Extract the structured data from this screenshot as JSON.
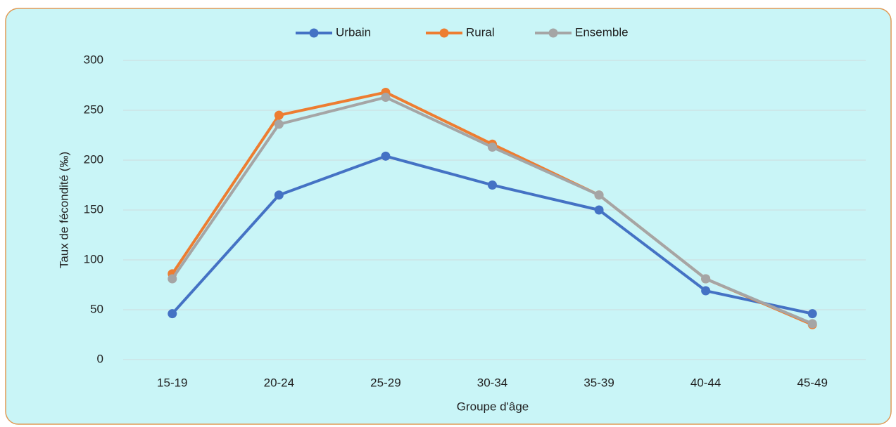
{
  "chart_data": {
    "type": "line",
    "y_label": "Taux de fécondité (‰)",
    "x_label": "Groupe d'âge",
    "categories": [
      "15-19",
      "20-24",
      "25-29",
      "30-34",
      "35-39",
      "40-44",
      "45-49"
    ],
    "series": [
      {
        "name": "Urbain",
        "color": "#4472c4",
        "values": [
          46,
          165,
          204,
          175,
          150,
          69,
          46
        ]
      },
      {
        "name": "Rural",
        "color": "#ed7d31",
        "values": [
          86,
          245,
          268,
          216,
          165,
          81,
          35
        ]
      },
      {
        "name": "Ensemble",
        "color": "#a5a5a5",
        "values": [
          81,
          236,
          263,
          213,
          165,
          81,
          36
        ]
      }
    ],
    "ylim": [
      0,
      300
    ],
    "yticks": [
      0,
      50,
      100,
      150,
      200,
      250,
      300
    ],
    "grid": true,
    "legend": "top"
  }
}
